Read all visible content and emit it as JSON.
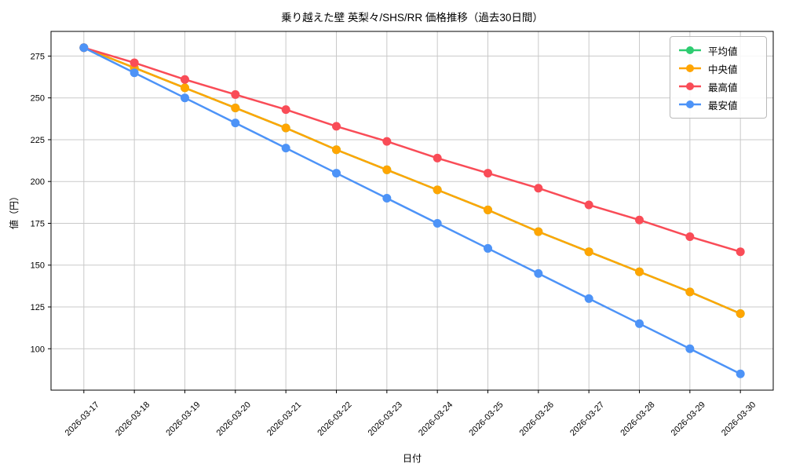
{
  "title": "乗り越えた壁 英梨々/SHS/RR 価格推移（過去30日間）",
  "xlabel": "日付",
  "ylabel": "値（円）",
  "legend": {
    "position": "upper right",
    "items": [
      {
        "label": "平均値",
        "color": "#2ecc71"
      },
      {
        "label": "中央値",
        "color": "#ffa502"
      },
      {
        "label": "最高値",
        "color": "#f94c57"
      },
      {
        "label": "最安値",
        "color": "#4d93f7"
      }
    ]
  },
  "chart_data": {
    "type": "line",
    "title": "乗り越えた壁 英梨々/SHS/RR 価格推移（過去30日間）",
    "xlabel": "日付",
    "ylabel": "値（円）",
    "x": [
      "2026-03-17",
      "2026-03-18",
      "2026-03-19",
      "2026-03-20",
      "2026-03-21",
      "2026-03-22",
      "2026-03-23",
      "2026-03-24",
      "2026-03-25",
      "2026-03-26",
      "2026-03-27",
      "2026-03-28",
      "2026-03-29",
      "2026-03-30"
    ],
    "series": [
      {
        "name": "平均値",
        "key": "average",
        "color": "#2ecc71",
        "values": [
          280,
          268,
          256,
          244,
          232,
          219,
          207,
          195,
          183,
          170,
          158,
          146,
          134,
          121
        ],
        "note": "hidden behind 中央値 line (identical values)"
      },
      {
        "name": "中央値",
        "key": "median",
        "color": "#ffa502",
        "values": [
          280,
          268,
          256,
          244,
          232,
          219,
          207,
          195,
          183,
          170,
          158,
          146,
          134,
          121
        ]
      },
      {
        "name": "最高値",
        "key": "max",
        "color": "#f94c57",
        "values": [
          280,
          271,
          261,
          252,
          243,
          233,
          224,
          214,
          205,
          196,
          186,
          177,
          167,
          158
        ]
      },
      {
        "name": "最安値",
        "key": "min",
        "color": "#4d93f7",
        "values": [
          280,
          265,
          250,
          235,
          220,
          205,
          190,
          175,
          160,
          145,
          130,
          115,
          100,
          85
        ]
      }
    ],
    "yticks": [
      100,
      125,
      150,
      175,
      200,
      225,
      250,
      275
    ],
    "ylim": [
      75.25,
      289.75
    ],
    "grid": true,
    "legend_position": "upper right",
    "x_tick_rotation": 45
  }
}
